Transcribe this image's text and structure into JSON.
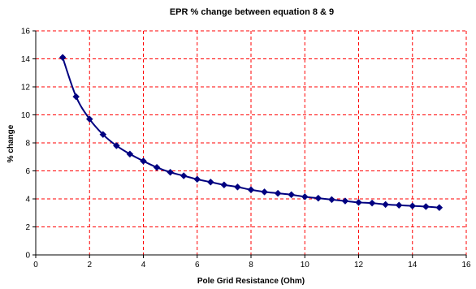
{
  "chart_data": {
    "type": "line",
    "title": "EPR % change between equation 8 & 9",
    "xlabel": "Pole Grid Resistance (Ohm)",
    "ylabel": "% change",
    "xlim": [
      0,
      16
    ],
    "ylim": [
      0,
      16
    ],
    "xticks": [
      0,
      2,
      4,
      6,
      8,
      10,
      12,
      14,
      16
    ],
    "yticks": [
      0,
      2,
      4,
      6,
      8,
      10,
      12,
      14,
      16
    ],
    "grid": true,
    "grid_style": "dashed",
    "grid_color": "#ff0000",
    "series": [
      {
        "color": "#000080",
        "marker": "diamond",
        "x": [
          1,
          1.5,
          2,
          2.5,
          3,
          3.5,
          4,
          4.5,
          5,
          5.5,
          6,
          6.5,
          7,
          7.5,
          8,
          8.5,
          9,
          9.5,
          10,
          10.5,
          11,
          11.5,
          12,
          12.5,
          13,
          13.5,
          14,
          14.5,
          15
        ],
        "y": [
          14.1,
          11.3,
          9.7,
          8.6,
          7.8,
          7.2,
          6.7,
          6.25,
          5.9,
          5.65,
          5.4,
          5.2,
          5.0,
          4.85,
          4.65,
          4.5,
          4.4,
          4.3,
          4.15,
          4.05,
          3.95,
          3.85,
          3.75,
          3.7,
          3.6,
          3.55,
          3.5,
          3.45,
          3.38
        ]
      }
    ]
  }
}
